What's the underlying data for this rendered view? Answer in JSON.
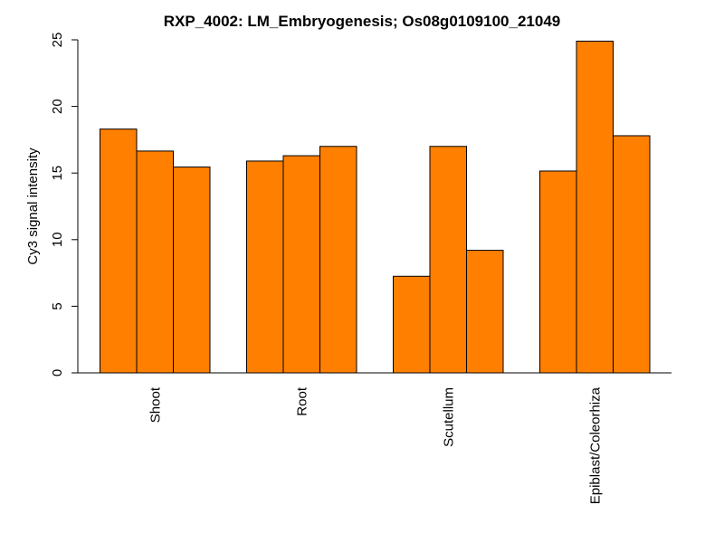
{
  "chart_data": {
    "type": "bar",
    "title": "RXP_4002: LM_Embryogenesis; Os08g0109100_21049",
    "xlabel": "",
    "ylabel": "Cy3 signal intensity",
    "ylim": [
      0,
      25
    ],
    "yticks": [
      0,
      5,
      10,
      15,
      20,
      25
    ],
    "categories": [
      "Shoot",
      "Root",
      "Scutellum",
      "Epiblast/Coleorhiza"
    ],
    "values": [
      [
        18.3,
        16.65,
        15.45
      ],
      [
        15.9,
        16.3,
        17.0
      ],
      [
        7.25,
        17.0,
        9.2
      ],
      [
        15.15,
        24.9,
        17.8
      ]
    ],
    "bar_color": "#FF7F00",
    "grid": false,
    "legend": "none"
  }
}
